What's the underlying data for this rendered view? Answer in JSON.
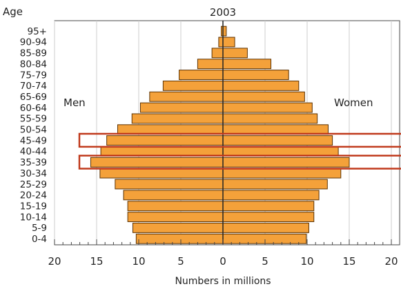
{
  "chart_data": {
    "type": "bar",
    "title": "2003",
    "age_axis_label": "Age",
    "xlabel": "Numbers in millions",
    "left_label": "Men",
    "right_label": "Women",
    "xlim": [
      -20,
      20
    ],
    "xticks": [
      -20,
      -15,
      -10,
      -5,
      0,
      5,
      10,
      15,
      20
    ],
    "xtick_labels": [
      "20",
      "15",
      "10",
      "5",
      "0",
      "5",
      "10",
      "15",
      "20"
    ],
    "grid": true,
    "categories": [
      "95+",
      "90-94",
      "85-89",
      "80-84",
      "75-79",
      "70-74",
      "65-69",
      "60-64",
      "55-59",
      "50-54",
      "45-49",
      "40-44",
      "35-39",
      "30-34",
      "25-29",
      "20-24",
      "15-19",
      "10-14",
      "5-9",
      "0-4"
    ],
    "series": [
      {
        "name": "Men",
        "values": [
          0.2,
          0.5,
          1.3,
          3.0,
          5.2,
          7.1,
          8.7,
          9.8,
          10.8,
          12.5,
          13.8,
          14.5,
          15.7,
          14.6,
          12.8,
          11.8,
          11.3,
          11.3,
          10.7,
          10.3
        ]
      },
      {
        "name": "Women",
        "values": [
          0.4,
          1.4,
          2.9,
          5.7,
          7.8,
          9.0,
          9.7,
          10.6,
          11.2,
          12.5,
          13.0,
          13.7,
          15.0,
          14.0,
          12.4,
          11.4,
          10.8,
          10.8,
          10.2,
          9.9
        ]
      }
    ],
    "highlighted_groups": [
      "45-49",
      "35-39"
    ],
    "colors": {
      "bar_fill": "#f4a13a",
      "bar_stroke": "#5a3000",
      "highlight": "#c0391b",
      "grid": "#cccccc",
      "frame": "#444444"
    }
  }
}
